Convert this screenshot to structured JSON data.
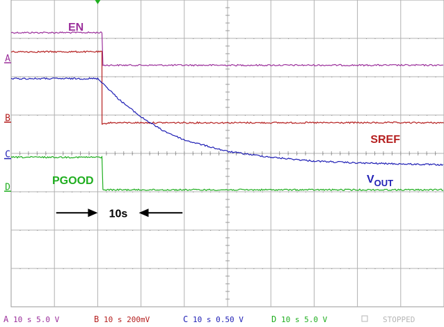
{
  "chart_data": {
    "type": "line",
    "title": "",
    "xlabel": "",
    "ylabel": "",
    "grid": true,
    "divisions": {
      "x": 10,
      "y": 8
    },
    "trigger_x_div": 2,
    "series": [
      {
        "name": "EN",
        "channel": "A",
        "color": "#9b2f9b",
        "label": "EN",
        "points": [
          [
            0,
            7.15
          ],
          [
            2.12,
            7.15
          ],
          [
            2.12,
            6.3
          ],
          [
            10,
            6.3
          ]
        ]
      },
      {
        "name": "SREF",
        "channel": "B",
        "color": "#b51f1f",
        "label": "SREF",
        "points": [
          [
            0,
            6.65
          ],
          [
            2.1,
            6.65
          ],
          [
            2.1,
            4.75
          ],
          [
            2.25,
            4.8
          ],
          [
            10,
            4.8
          ]
        ]
      },
      {
        "name": "VOUT",
        "channel": "C",
        "color": "#1f1fb5",
        "label_main": "V",
        "label_sub": "OUT",
        "points": [
          [
            0,
            5.95
          ],
          [
            2,
            5.95
          ],
          [
            2.1,
            5.85
          ],
          [
            2.5,
            5.4
          ],
          [
            3,
            4.95
          ],
          [
            3.5,
            4.6
          ],
          [
            4,
            4.35
          ],
          [
            4.5,
            4.2
          ],
          [
            5,
            4.05
          ],
          [
            6,
            3.9
          ],
          [
            7,
            3.8
          ],
          [
            8,
            3.75
          ],
          [
            10,
            3.7
          ]
        ]
      },
      {
        "name": "PGOOD",
        "channel": "D",
        "color": "#1fae1f",
        "label": "PGOOD",
        "points": [
          [
            0,
            3.9
          ],
          [
            2.12,
            3.9
          ],
          [
            2.12,
            3.05
          ],
          [
            10,
            3.05
          ]
        ]
      }
    ],
    "markers": {
      "A": 6.4,
      "B": 4.85,
      "C": 3.9,
      "D": 3.05
    },
    "annotation": {
      "text": "10s",
      "from_div": 0.8,
      "to_div": 4.2,
      "y_div": 2.45
    }
  },
  "status_bar": [
    {
      "channel": "A",
      "text": "10 s 5.0 V",
      "color": "#9b2f9b"
    },
    {
      "channel": "B",
      "text": "10 s 200mV",
      "color": "#b51f1f"
    },
    {
      "channel": "C",
      "text": "10 s 0.50 V",
      "color": "#1f1fb5"
    },
    {
      "channel": "D",
      "text": "10 s 5.0 V",
      "color": "#1fae1f"
    },
    {
      "channel": "",
      "text": "STOPPED",
      "color": "#b5b5b5"
    }
  ]
}
